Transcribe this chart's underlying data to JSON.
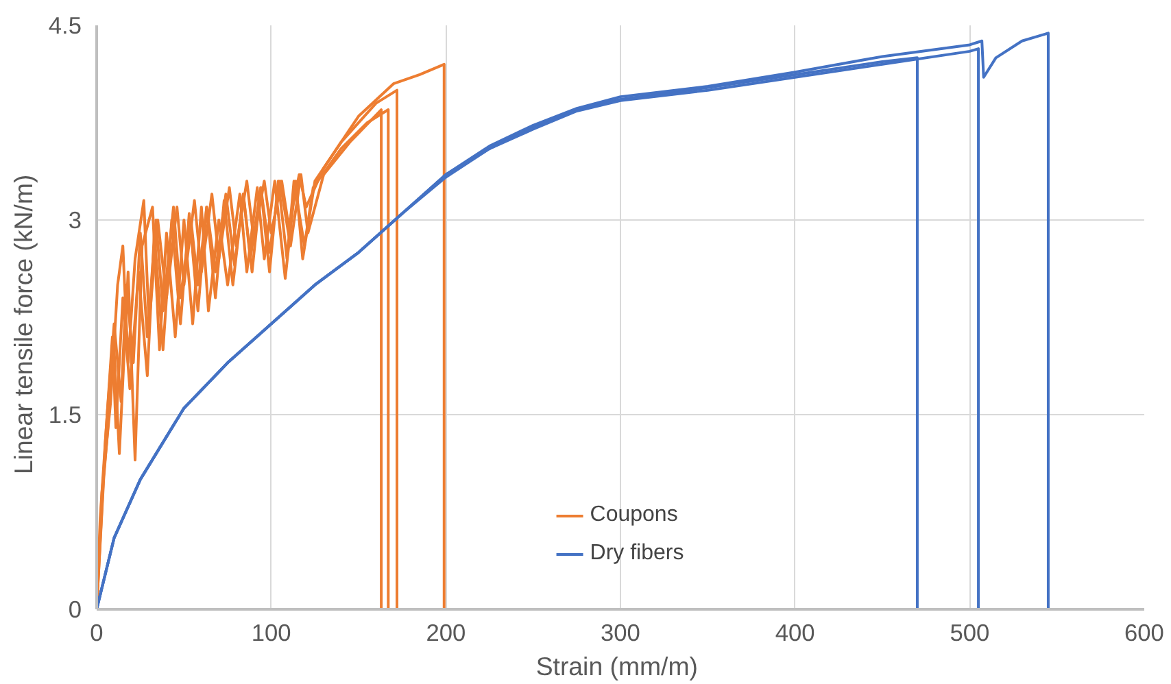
{
  "chart_data": {
    "type": "line",
    "xlabel": "Strain  (mm/m)",
    "ylabel": "Linear tensile force   (kN/m)",
    "xlim": [
      0,
      600
    ],
    "ylim": [
      0,
      4.5
    ],
    "xticks": [
      0,
      100,
      200,
      300,
      400,
      500,
      600
    ],
    "yticks": [
      0,
      1.5,
      3,
      4.5
    ],
    "grid": true,
    "legend": "bottom",
    "marker": "none",
    "line_style": "solid",
    "series": [
      {
        "name": "Coupons",
        "color": "#ed7d31",
        "x": [
          0,
          3,
          8,
          12,
          15,
          18,
          22,
          27,
          30,
          35,
          40,
          46,
          50,
          56,
          60,
          66,
          70,
          76,
          80,
          86,
          90,
          96,
          100,
          106,
          110,
          116,
          120,
          130,
          150,
          170,
          185,
          199,
          199
        ],
        "values": [
          0,
          0.9,
          1.6,
          2.5,
          2.8,
          1.9,
          2.7,
          3.15,
          2.2,
          3.0,
          2.4,
          3.1,
          2.5,
          3.15,
          2.6,
          3.2,
          2.7,
          3.25,
          2.8,
          3.3,
          2.85,
          3.3,
          2.9,
          3.3,
          2.95,
          3.35,
          3.1,
          3.4,
          3.8,
          4.05,
          4.12,
          4.2,
          0
        ]
      },
      {
        "color": "#ed7d31",
        "x": [
          0,
          4,
          10,
          13,
          18,
          22,
          26,
          32,
          36,
          40,
          45,
          50,
          55,
          60,
          64,
          70,
          75,
          82,
          86,
          92,
          96,
          102,
          108,
          114,
          118,
          125,
          140,
          160,
          172,
          172
        ],
        "values": [
          0,
          1.0,
          2.0,
          1.2,
          2.6,
          1.15,
          2.8,
          3.1,
          2.0,
          2.9,
          2.1,
          3.0,
          2.2,
          3.1,
          2.3,
          3.0,
          2.5,
          3.2,
          2.6,
          3.25,
          2.7,
          3.3,
          2.55,
          3.3,
          2.7,
          3.3,
          3.6,
          3.9,
          4.0,
          0
        ]
      },
      {
        "color": "#ed7d31",
        "x": [
          0,
          5,
          9,
          11,
          15,
          19,
          24,
          29,
          33,
          38,
          43,
          48,
          53,
          58,
          63,
          68,
          73,
          78,
          84,
          89,
          94,
          99,
          104,
          109,
          113,
          119,
          124,
          140,
          155,
          167,
          167
        ],
        "values": [
          0,
          1.3,
          2.1,
          1.4,
          2.4,
          1.7,
          2.6,
          1.8,
          2.9,
          2.0,
          3.0,
          2.2,
          3.05,
          2.3,
          3.1,
          2.4,
          3.15,
          2.5,
          3.2,
          2.6,
          3.25,
          2.6,
          3.3,
          2.7,
          3.3,
          2.8,
          3.25,
          3.55,
          3.75,
          3.85,
          0
        ]
      },
      {
        "color": "#ed7d31",
        "x": [
          0,
          2,
          6,
          10,
          14,
          17,
          21,
          25,
          29,
          34,
          38,
          44,
          48,
          54,
          58,
          63,
          68,
          74,
          79,
          84,
          88,
          94,
          99,
          105,
          111,
          117,
          121,
          130,
          145,
          163,
          163
        ],
        "values": [
          0,
          0.7,
          1.5,
          2.2,
          1.6,
          2.5,
          1.9,
          2.9,
          2.1,
          3.0,
          2.3,
          3.1,
          2.4,
          3.0,
          2.5,
          3.1,
          2.6,
          3.2,
          2.65,
          3.2,
          2.7,
          3.25,
          2.75,
          3.3,
          2.8,
          3.35,
          2.9,
          3.35,
          3.6,
          3.85,
          0
        ]
      },
      {
        "name": "Dry fibers",
        "color": "#4472c4",
        "x": [
          0,
          10,
          25,
          50,
          75,
          100,
          125,
          150,
          175,
          200,
          225,
          250,
          275,
          300,
          350,
          400,
          450,
          470,
          470
        ],
        "values": [
          0,
          0.55,
          1.0,
          1.55,
          1.9,
          2.2,
          2.5,
          2.75,
          3.05,
          3.35,
          3.55,
          3.72,
          3.85,
          3.93,
          4.02,
          4.12,
          4.22,
          4.25,
          0
        ]
      },
      {
        "color": "#4472c4",
        "x": [
          0,
          10,
          25,
          50,
          75,
          100,
          125,
          150,
          175,
          200,
          225,
          250,
          275,
          300,
          350,
          400,
          450,
          500,
          505,
          505
        ],
        "values": [
          0,
          0.55,
          1.0,
          1.55,
          1.9,
          2.2,
          2.5,
          2.75,
          3.05,
          3.33,
          3.55,
          3.7,
          3.84,
          3.92,
          4.0,
          4.1,
          4.2,
          4.3,
          4.32,
          0
        ]
      },
      {
        "color": "#4472c4",
        "x": [
          0,
          10,
          25,
          50,
          75,
          100,
          125,
          150,
          175,
          200,
          225,
          250,
          275,
          300,
          350,
          400,
          450,
          500,
          507,
          508,
          515,
          530,
          545,
          545
        ],
        "values": [
          0,
          0.55,
          1.0,
          1.55,
          1.9,
          2.2,
          2.5,
          2.75,
          3.05,
          3.35,
          3.57,
          3.73,
          3.86,
          3.95,
          4.03,
          4.14,
          4.26,
          4.35,
          4.38,
          4.1,
          4.25,
          4.38,
          4.44,
          0
        ]
      }
    ]
  }
}
